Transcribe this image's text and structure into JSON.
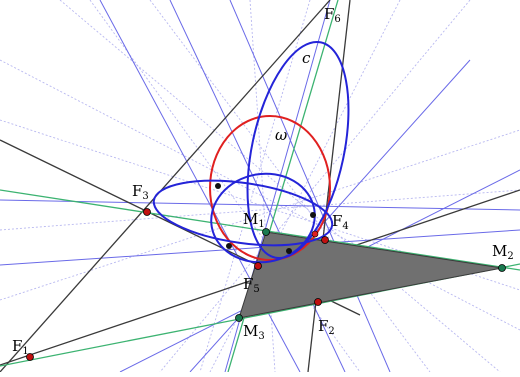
{
  "colors": {
    "background": "#ffffff",
    "black_line": "#3a3a3a",
    "green_line": "#3cb371",
    "blue_line": "#6a6ae8",
    "faint_line": "#b8b8f0",
    "conic_c": "#2424d8",
    "circle_omega": "#e02020",
    "point_red": "#c01010",
    "point_green": "#1a7a50",
    "point_black": "#111111",
    "triangle_fill": "#707070"
  },
  "labels": {
    "F1": {
      "main": "F",
      "sub": "1"
    },
    "F2": {
      "main": "F",
      "sub": "2"
    },
    "F3": {
      "main": "F",
      "sub": "3"
    },
    "F4": {
      "main": "F",
      "sub": "4"
    },
    "F5": {
      "main": "F",
      "sub": "5"
    },
    "F6": {
      "main": "F",
      "sub": "6"
    },
    "M1": {
      "main": "M",
      "sub": "1"
    },
    "M2": {
      "main": "M",
      "sub": "2"
    },
    "M3": {
      "main": "M",
      "sub": "3"
    },
    "conic_c": "c",
    "circle_omega": "ω"
  }
}
